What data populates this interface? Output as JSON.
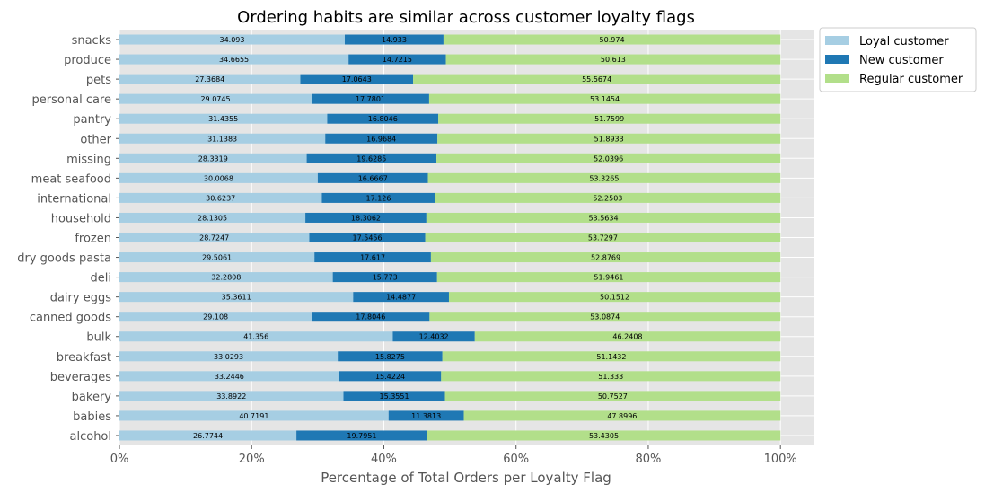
{
  "chart_data": {
    "type": "bar",
    "orientation": "horizontal",
    "stacked": true,
    "title": "Ordering habits are similar across customer loyalty flags",
    "xlabel": "Percentage of Total Orders per Loyalty Flag",
    "ylabel": "",
    "xlim": [
      0,
      105
    ],
    "x_ticks": [
      {
        "value": 0,
        "label": "0%"
      },
      {
        "value": 20,
        "label": "20%"
      },
      {
        "value": 40,
        "label": "40%"
      },
      {
        "value": 60,
        "label": "60%"
      },
      {
        "value": 80,
        "label": "80%"
      },
      {
        "value": 100,
        "label": "100%"
      }
    ],
    "grid": true,
    "legend_position": "outside-top-right",
    "background_color": "#e5e5e5",
    "categories": [
      "alcohol",
      "babies",
      "bakery",
      "beverages",
      "breakfast",
      "bulk",
      "canned goods",
      "dairy eggs",
      "deli",
      "dry goods pasta",
      "frozen",
      "household",
      "international",
      "meat seafood",
      "missing",
      "other",
      "pantry",
      "personal care",
      "pets",
      "produce",
      "snacks"
    ],
    "series": [
      {
        "name": "Loyal customer",
        "color": "#a6cee3",
        "values": [
          26.7744,
          40.7191,
          33.8922,
          33.2446,
          33.0293,
          41.356,
          29.108,
          35.3611,
          32.2808,
          29.5061,
          28.7247,
          28.1305,
          30.6237,
          30.0068,
          28.3319,
          31.1383,
          31.4355,
          29.0745,
          27.3684,
          34.6655,
          34.093
        ],
        "labels": [
          "26.7744",
          "40.7191",
          "33.8922",
          "33.2446",
          "33.0293",
          "41.356",
          "29.108",
          "35.3611",
          "32.2808",
          "29.5061",
          "28.7247",
          "28.1305",
          "30.6237",
          "30.0068",
          "28.3319",
          "31.1383",
          "31.4355",
          "29.0745",
          "27.3684",
          "34.6655",
          "34.093"
        ]
      },
      {
        "name": "New customer",
        "color": "#1f78b4",
        "values": [
          19.7951,
          11.3813,
          15.3551,
          15.4224,
          15.8275,
          12.4032,
          17.8046,
          14.4877,
          15.773,
          17.617,
          17.5456,
          18.3062,
          17.126,
          16.6667,
          19.6285,
          16.9684,
          16.8046,
          17.7801,
          17.0643,
          14.7215,
          14.933
        ],
        "labels": [
          "19.7951",
          "11.3813",
          "15.3551",
          "15.4224",
          "15.8275",
          "12.4032",
          "17.8046",
          "14.4877",
          "15.773",
          "17.617",
          "17.5456",
          "18.3062",
          "17.126",
          "16.6667",
          "19.6285",
          "16.9684",
          "16.8046",
          "17.7801",
          "17.0643",
          "14.7215",
          "14.933"
        ]
      },
      {
        "name": "Regular customer",
        "color": "#b2df8a",
        "values": [
          53.4305,
          47.8996,
          50.7527,
          51.333,
          51.1432,
          46.2408,
          53.0874,
          50.1512,
          51.9461,
          52.8769,
          53.7297,
          53.5634,
          52.2503,
          53.3265,
          52.0396,
          51.8933,
          51.7599,
          53.1454,
          55.5674,
          50.613,
          50.974
        ],
        "labels": [
          "53.4305",
          "47.8996",
          "50.7527",
          "51.333",
          "51.1432",
          "46.2408",
          "53.0874",
          "50.1512",
          "51.9461",
          "52.8769",
          "53.7297",
          "53.5634",
          "52.2503",
          "53.3265",
          "52.0396",
          "51.8933",
          "51.7599",
          "53.1454",
          "55.5674",
          "50.613",
          "50.974"
        ]
      }
    ]
  }
}
